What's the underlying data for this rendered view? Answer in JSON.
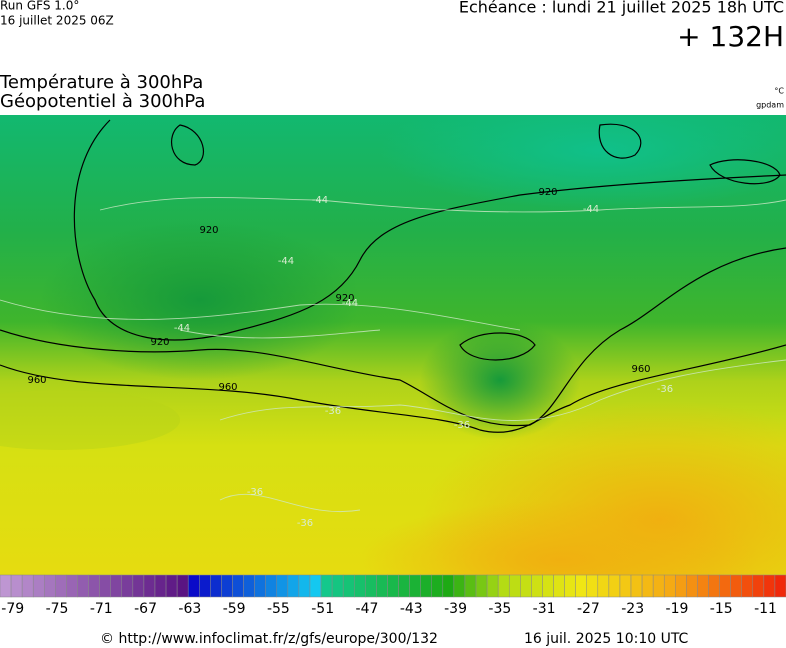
{
  "header": {
    "run": "Run GFS 1.0°",
    "run_date": "16 juillet 2025 06Z",
    "valid_time": "Echéance : lundi 21 juillet 2025 18h UTC",
    "lead_time": "+ 132H",
    "field_temperature": "Température à 300hPa",
    "field_geopotential": "Géopotentiel à 300hPa",
    "unit_temperature": "°C",
    "unit_geopotential": "gpdam"
  },
  "map": {
    "contour_labels": [
      "920",
      "920",
      "920",
      "920",
      "960",
      "960",
      "960",
      "-44",
      "-44",
      "-44",
      "-44",
      "-44",
      "-36",
      "-36",
      "-36",
      "-36",
      "-36"
    ]
  },
  "colorbar": {
    "ticks": [
      -79,
      -75,
      -71,
      -67,
      -63,
      -59,
      -55,
      -51,
      -47,
      -43,
      -39,
      -35,
      -31,
      -27,
      -23,
      -19,
      -15,
      -11
    ]
  },
  "footer": {
    "url": "© http://www.infoclimat.fr/z/gfs/europe/300/132",
    "generated": "16 juil. 2025 10:10 UTC"
  }
}
